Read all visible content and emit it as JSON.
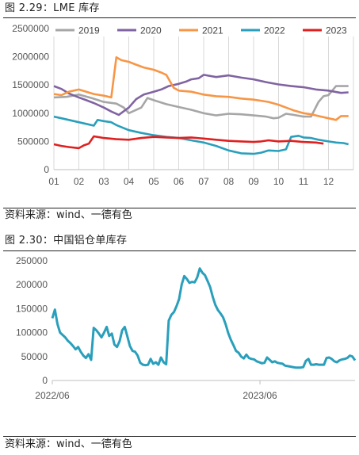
{
  "figure1": {
    "caption": "图 2.29：LME 库存",
    "source": "资料来源：wind、一德有色"
  },
  "figure2": {
    "caption": "图 2.30：中国铝仓单库存",
    "source": "资料来源：wind、一德有色"
  },
  "chart_data": [
    {
      "type": "line",
      "title": "LME 库存",
      "categories": [
        "01",
        "02",
        "03",
        "04",
        "05",
        "06",
        "07",
        "08",
        "09",
        "10",
        "11",
        "12"
      ],
      "x_domain": [
        1,
        13
      ],
      "ylim": [
        0,
        2500000
      ],
      "yticks": [
        0,
        500000,
        1000000,
        1500000,
        2000000,
        2500000
      ],
      "ytick_labels": [
        "0",
        "500000",
        "1000000",
        "1500000",
        "2000000",
        "2500000"
      ],
      "grid": "vertical",
      "legend_position": "top",
      "series": [
        {
          "name": "2019",
          "color": "#a6a6a6",
          "points": [
            [
              1,
              1280000
            ],
            [
              1.5,
              1290000
            ],
            [
              2,
              1330000
            ],
            [
              2.5,
              1270000
            ],
            [
              3,
              1200000
            ],
            [
              3.5,
              1170000
            ],
            [
              3.8,
              1100000
            ],
            [
              4,
              1000000
            ],
            [
              4.5,
              1100000
            ],
            [
              4.75,
              1270000
            ],
            [
              5,
              1230000
            ],
            [
              5.5,
              1160000
            ],
            [
              6,
              1110000
            ],
            [
              6.5,
              1060000
            ],
            [
              7,
              1000000
            ],
            [
              7.5,
              960000
            ],
            [
              8,
              990000
            ],
            [
              8.5,
              980000
            ],
            [
              9,
              960000
            ],
            [
              9.5,
              940000
            ],
            [
              9.8,
              910000
            ],
            [
              10,
              920000
            ],
            [
              10.3,
              990000
            ],
            [
              10.6,
              970000
            ],
            [
              11,
              940000
            ],
            [
              11.3,
              940000
            ],
            [
              11.6,
              1200000
            ],
            [
              11.8,
              1300000
            ],
            [
              12,
              1320000
            ],
            [
              12.3,
              1480000
            ],
            [
              12.8,
              1480000
            ]
          ]
        },
        {
          "name": "2020",
          "color": "#8064a2",
          "points": [
            [
              1,
              1480000
            ],
            [
              1.3,
              1430000
            ],
            [
              1.6,
              1350000
            ],
            [
              2,
              1280000
            ],
            [
              2.3,
              1230000
            ],
            [
              2.6,
              1180000
            ],
            [
              3,
              1100000
            ],
            [
              3.3,
              1030000
            ],
            [
              3.6,
              970000
            ],
            [
              4,
              1100000
            ],
            [
              4.3,
              1250000
            ],
            [
              4.6,
              1330000
            ],
            [
              5,
              1380000
            ],
            [
              5.3,
              1420000
            ],
            [
              5.6,
              1480000
            ],
            [
              6,
              1520000
            ],
            [
              6.3,
              1560000
            ],
            [
              6.5,
              1600000
            ],
            [
              6.8,
              1620000
            ],
            [
              7,
              1680000
            ],
            [
              7.5,
              1640000
            ],
            [
              8,
              1670000
            ],
            [
              8.5,
              1630000
            ],
            [
              9,
              1600000
            ],
            [
              9.5,
              1550000
            ],
            [
              10,
              1510000
            ],
            [
              10.5,
              1480000
            ],
            [
              11,
              1460000
            ],
            [
              11.5,
              1420000
            ],
            [
              12,
              1400000
            ],
            [
              12.5,
              1360000
            ],
            [
              12.8,
              1370000
            ]
          ]
        },
        {
          "name": "2021",
          "color": "#f79646",
          "points": [
            [
              1,
              1340000
            ],
            [
              1.3,
              1320000
            ],
            [
              1.6,
              1380000
            ],
            [
              2,
              1420000
            ],
            [
              2.3,
              1380000
            ],
            [
              2.6,
              1340000
            ],
            [
              3,
              1310000
            ],
            [
              3.3,
              1280000
            ],
            [
              3.5,
              1990000
            ],
            [
              3.7,
              1940000
            ],
            [
              4,
              1910000
            ],
            [
              4.3,
              1860000
            ],
            [
              4.6,
              1810000
            ],
            [
              5,
              1770000
            ],
            [
              5.3,
              1720000
            ],
            [
              5.5,
              1680000
            ],
            [
              5.8,
              1450000
            ],
            [
              6,
              1400000
            ],
            [
              6.5,
              1380000
            ],
            [
              7,
              1330000
            ],
            [
              7.5,
              1300000
            ],
            [
              8,
              1290000
            ],
            [
              8.5,
              1260000
            ],
            [
              9,
              1240000
            ],
            [
              9.3,
              1220000
            ],
            [
              9.6,
              1200000
            ],
            [
              10,
              1150000
            ],
            [
              10.3,
              1100000
            ],
            [
              10.6,
              1050000
            ],
            [
              11,
              1000000
            ],
            [
              11.3,
              980000
            ],
            [
              11.6,
              950000
            ],
            [
              12,
              910000
            ],
            [
              12.3,
              880000
            ],
            [
              12.5,
              950000
            ],
            [
              12.8,
              950000
            ]
          ]
        },
        {
          "name": "2022",
          "color": "#2a9fbc",
          "points": [
            [
              1,
              940000
            ],
            [
              1.3,
              910000
            ],
            [
              1.6,
              880000
            ],
            [
              2,
              840000
            ],
            [
              2.3,
              810000
            ],
            [
              2.6,
              780000
            ],
            [
              2.75,
              880000
            ],
            [
              3,
              860000
            ],
            [
              3.3,
              840000
            ],
            [
              3.5,
              790000
            ],
            [
              4,
              700000
            ],
            [
              4.5,
              650000
            ],
            [
              5,
              610000
            ],
            [
              5.5,
              580000
            ],
            [
              6,
              560000
            ],
            [
              6.5,
              520000
            ],
            [
              7,
              480000
            ],
            [
              7.5,
              420000
            ],
            [
              8,
              340000
            ],
            [
              8.5,
              290000
            ],
            [
              9,
              280000
            ],
            [
              9.3,
              300000
            ],
            [
              9.6,
              340000
            ],
            [
              10,
              330000
            ],
            [
              10.3,
              360000
            ],
            [
              10.5,
              580000
            ],
            [
              10.8,
              600000
            ],
            [
              11,
              570000
            ],
            [
              11.3,
              560000
            ],
            [
              11.6,
              530000
            ],
            [
              12,
              500000
            ],
            [
              12.3,
              480000
            ],
            [
              12.6,
              470000
            ],
            [
              12.8,
              450000
            ]
          ]
        },
        {
          "name": "2023",
          "color": "#e02020",
          "points": [
            [
              1,
              450000
            ],
            [
              1.3,
              420000
            ],
            [
              1.6,
              400000
            ],
            [
              2,
              380000
            ],
            [
              2.2,
              430000
            ],
            [
              2.4,
              460000
            ],
            [
              2.6,
              590000
            ],
            [
              3,
              560000
            ],
            [
              3.5,
              540000
            ],
            [
              4,
              530000
            ],
            [
              4.5,
              560000
            ],
            [
              5,
              580000
            ],
            [
              5.5,
              570000
            ],
            [
              6,
              560000
            ],
            [
              6.5,
              570000
            ],
            [
              7,
              550000
            ],
            [
              7.5,
              530000
            ],
            [
              8,
              510000
            ],
            [
              8.5,
              500000
            ],
            [
              9,
              490000
            ],
            [
              9.3,
              500000
            ],
            [
              9.6,
              520000
            ],
            [
              10,
              500000
            ],
            [
              10.5,
              510000
            ],
            [
              11,
              490000
            ],
            [
              11.5,
              480000
            ],
            [
              11.8,
              460000
            ]
          ]
        }
      ]
    },
    {
      "type": "line",
      "title": "中国铝仓单库存",
      "x_tick_labels": [
        "2022/06",
        "2023/06"
      ],
      "ylim": [
        0,
        250000
      ],
      "yticks": [
        0,
        50000,
        100000,
        150000,
        200000,
        250000
      ],
      "ytick_labels": [
        "0",
        "50000",
        "100000",
        "150000",
        "200000",
        "250000"
      ],
      "grid": "none",
      "series": [
        {
          "color": "#2a9fbc",
          "values": [
            130000,
            148000,
            118000,
            100000,
            95000,
            90000,
            83000,
            78000,
            72000,
            65000,
            70000,
            60000,
            52000,
            47000,
            55000,
            43000,
            110000,
            105000,
            98000,
            90000,
            100000,
            112000,
            93000,
            98000,
            75000,
            70000,
            82000,
            105000,
            112000,
            92000,
            72000,
            62000,
            60000,
            52000,
            37000,
            33000,
            32000,
            33000,
            45000,
            35000,
            38000,
            33000,
            48000,
            38000,
            34000,
            125000,
            137000,
            143000,
            155000,
            170000,
            200000,
            218000,
            212000,
            204000,
            206000,
            205000,
            215000,
            234000,
            225000,
            220000,
            208000,
            195000,
            175000,
            158000,
            147000,
            140000,
            132000,
            117000,
            99000,
            85000,
            74000,
            62000,
            58000,
            50000,
            46000,
            54000,
            47000,
            45000,
            44000,
            40000,
            38000,
            36000,
            37000,
            48000,
            43000,
            38000,
            40000,
            37000,
            36000,
            35000,
            31000,
            30000,
            29000,
            28000,
            27000,
            27000,
            27000,
            28000,
            41000,
            45000,
            33000,
            33000,
            34000,
            33000,
            33000,
            33000,
            47000,
            48000,
            45000,
            40000,
            38000,
            42000,
            44000,
            45000,
            47000,
            52000,
            50000,
            42000
          ]
        }
      ]
    }
  ]
}
